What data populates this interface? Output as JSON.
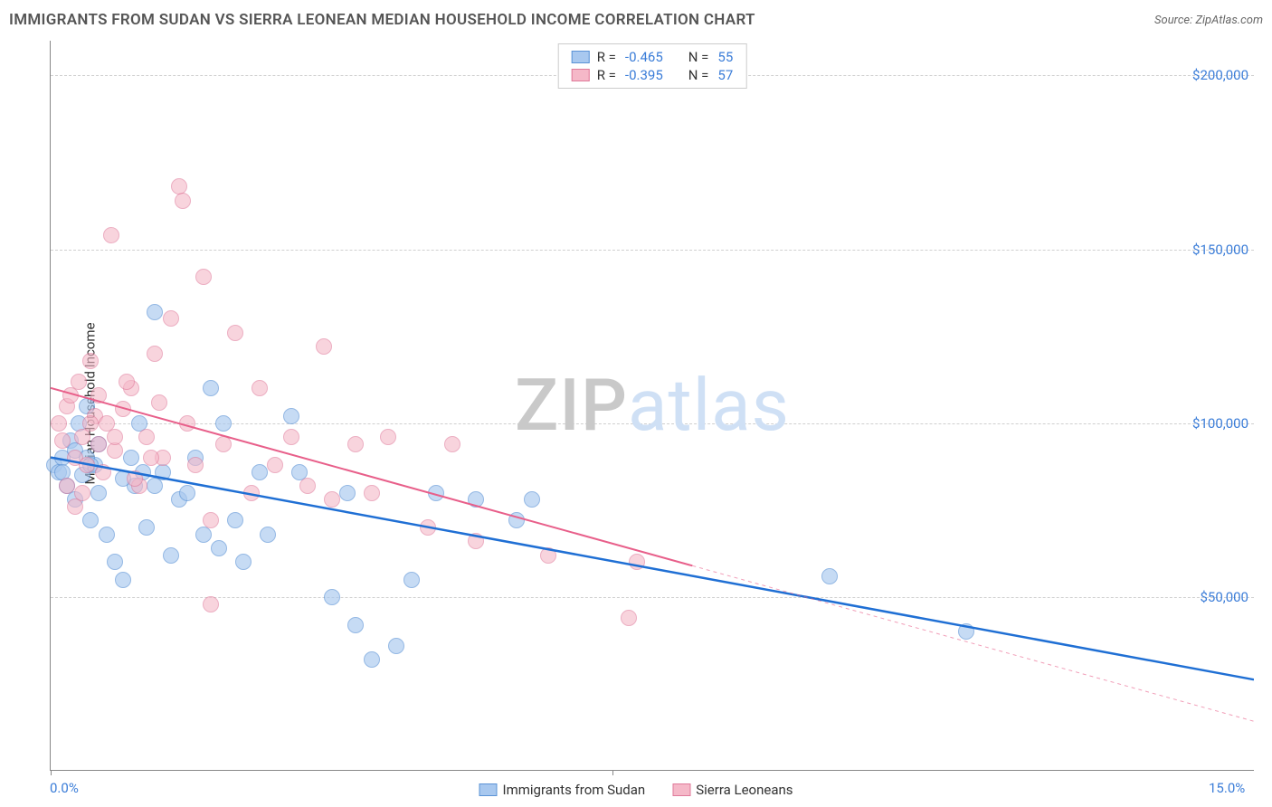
{
  "header": {
    "title": "IMMIGRANTS FROM SUDAN VS SIERRA LEONEAN MEDIAN HOUSEHOLD INCOME CORRELATION CHART",
    "source_prefix": "Source: ",
    "source": "ZipAtlas.com"
  },
  "chart": {
    "type": "scatter",
    "y_label": "Median Household Income",
    "x_min": 0,
    "x_max": 15,
    "y_min": 0,
    "y_max": 210000,
    "x_ticks": [
      {
        "pos": 0,
        "label": "0.0%"
      },
      {
        "pos": 15,
        "label": "15.0%"
      }
    ],
    "x_tick_marks": [
      0,
      7.0
    ],
    "y_ticks": [
      {
        "pos": 50000,
        "label": "$50,000"
      },
      {
        "pos": 100000,
        "label": "$100,000"
      },
      {
        "pos": 150000,
        "label": "$150,000"
      },
      {
        "pos": 200000,
        "label": "$200,000"
      }
    ],
    "gridlines_y": [
      50000,
      100000,
      150000,
      200000
    ],
    "background_color": "#ffffff",
    "grid_color": "#d0d0d0",
    "axis_color": "#888888",
    "tick_label_color": "#3b7dd8",
    "marker_radius": 9,
    "series": [
      {
        "name": "Immigrants from Sudan",
        "fill": "#a8c8ef",
        "stroke": "#5b93d6",
        "fill_opacity": 0.65,
        "trend": {
          "x1": 0,
          "y1": 90000,
          "x2": 15,
          "y2": 26000,
          "solid_to_x": 15,
          "color": "#1f6fd4",
          "width": 2.5
        },
        "R": "-0.465",
        "N": "55",
        "points": [
          [
            0.05,
            88000
          ],
          [
            0.1,
            86000
          ],
          [
            0.15,
            90000
          ],
          [
            0.2,
            82000
          ],
          [
            0.25,
            95000
          ],
          [
            0.3,
            78000
          ],
          [
            0.35,
            100000
          ],
          [
            0.4,
            85000
          ],
          [
            0.45,
            105000
          ],
          [
            0.5,
            72000
          ],
          [
            0.55,
            88000
          ],
          [
            0.6,
            80000
          ],
          [
            0.7,
            68000
          ],
          [
            0.8,
            60000
          ],
          [
            0.9,
            55000
          ],
          [
            1.0,
            90000
          ],
          [
            1.05,
            82000
          ],
          [
            1.1,
            100000
          ],
          [
            1.2,
            70000
          ],
          [
            1.3,
            132000
          ],
          [
            1.4,
            86000
          ],
          [
            1.5,
            62000
          ],
          [
            1.6,
            78000
          ],
          [
            1.7,
            80000
          ],
          [
            1.8,
            90000
          ],
          [
            1.9,
            68000
          ],
          [
            2.0,
            110000
          ],
          [
            2.1,
            64000
          ],
          [
            2.15,
            100000
          ],
          [
            2.3,
            72000
          ],
          [
            2.4,
            60000
          ],
          [
            2.6,
            86000
          ],
          [
            2.7,
            68000
          ],
          [
            3.0,
            102000
          ],
          [
            3.1,
            86000
          ],
          [
            3.5,
            50000
          ],
          [
            3.7,
            80000
          ],
          [
            3.8,
            42000
          ],
          [
            4.0,
            32000
          ],
          [
            4.3,
            36000
          ],
          [
            4.5,
            55000
          ],
          [
            4.8,
            80000
          ],
          [
            5.3,
            78000
          ],
          [
            5.8,
            72000
          ],
          [
            6.0,
            78000
          ],
          [
            9.7,
            56000
          ],
          [
            11.4,
            40000
          ],
          [
            0.3,
            92000
          ],
          [
            0.6,
            94000
          ],
          [
            0.15,
            86000
          ],
          [
            0.45,
            90000
          ],
          [
            0.9,
            84000
          ],
          [
            1.15,
            86000
          ],
          [
            1.3,
            82000
          ],
          [
            0.5,
            88000
          ]
        ]
      },
      {
        "name": "Sierra Leoneans",
        "fill": "#f5b8c8",
        "stroke": "#e07a9a",
        "fill_opacity": 0.6,
        "trend": {
          "x1": 0,
          "y1": 110000,
          "x2": 15,
          "y2": 14000,
          "solid_to_x": 8.0,
          "color": "#e85f8a",
          "width": 2
        },
        "R": "-0.395",
        "N": "57",
        "points": [
          [
            0.1,
            100000
          ],
          [
            0.15,
            95000
          ],
          [
            0.2,
            105000
          ],
          [
            0.25,
            108000
          ],
          [
            0.3,
            90000
          ],
          [
            0.35,
            112000
          ],
          [
            0.4,
            96000
          ],
          [
            0.45,
            88000
          ],
          [
            0.5,
            118000
          ],
          [
            0.55,
            102000
          ],
          [
            0.6,
            94000
          ],
          [
            0.65,
            86000
          ],
          [
            0.7,
            100000
          ],
          [
            0.75,
            154000
          ],
          [
            0.8,
            92000
          ],
          [
            0.9,
            104000
          ],
          [
            1.0,
            110000
          ],
          [
            1.1,
            82000
          ],
          [
            1.2,
            96000
          ],
          [
            1.3,
            120000
          ],
          [
            1.4,
            90000
          ],
          [
            1.5,
            130000
          ],
          [
            1.6,
            168000
          ],
          [
            1.65,
            164000
          ],
          [
            1.7,
            100000
          ],
          [
            1.8,
            88000
          ],
          [
            1.9,
            142000
          ],
          [
            2.0,
            72000
          ],
          [
            2.15,
            94000
          ],
          [
            2.3,
            126000
          ],
          [
            2.5,
            80000
          ],
          [
            2.6,
            110000
          ],
          [
            2.8,
            88000
          ],
          [
            3.0,
            96000
          ],
          [
            3.2,
            82000
          ],
          [
            3.4,
            122000
          ],
          [
            3.5,
            78000
          ],
          [
            3.8,
            94000
          ],
          [
            4.0,
            80000
          ],
          [
            4.2,
            96000
          ],
          [
            4.7,
            70000
          ],
          [
            5.0,
            94000
          ],
          [
            5.3,
            66000
          ],
          [
            6.2,
            62000
          ],
          [
            7.2,
            44000
          ],
          [
            7.3,
            60000
          ],
          [
            2.0,
            48000
          ],
          [
            0.2,
            82000
          ],
          [
            0.4,
            80000
          ],
          [
            0.3,
            76000
          ],
          [
            0.5,
            100000
          ],
          [
            0.8,
            96000
          ],
          [
            1.05,
            84000
          ],
          [
            1.25,
            90000
          ],
          [
            0.6,
            108000
          ],
          [
            0.95,
            112000
          ],
          [
            1.35,
            106000
          ]
        ]
      }
    ]
  },
  "legend_top": {
    "R_label": "R =",
    "N_label": "N ="
  },
  "watermark": {
    "part1": "ZIP",
    "part2": "atlas"
  }
}
